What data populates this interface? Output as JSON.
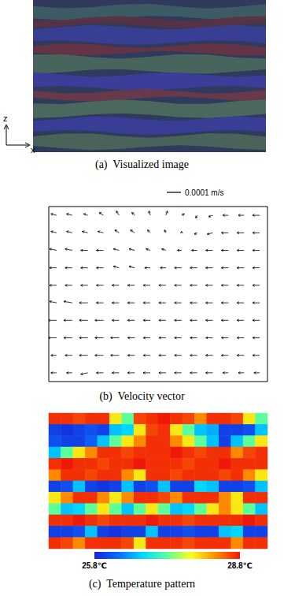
{
  "panel_a": {
    "caption": "(a)  Visualized image",
    "axis_labels": {
      "vertical": "z",
      "horizontal": "x"
    }
  },
  "chart_data": [
    {
      "type": "vector",
      "caption": "(b)  Velocity vector",
      "tick_labels": false,
      "scale_label": "0.0001 m/s",
      "scale_value": 0.0001,
      "u": [
        [
          -4e-05,
          -4e-05,
          -3e-05,
          -3e-05,
          -2e-05,
          -2e-05,
          -1e-05,
          1e-05,
          2e-05,
          -1e-05,
          -3e-05,
          -4e-05,
          -4e-05,
          -5e-05
        ],
        [
          -4e-05,
          -4e-05,
          -4e-05,
          -4e-05,
          -3e-05,
          -3e-05,
          -2e-05,
          -1e-05,
          0,
          -2e-05,
          -4e-05,
          -5e-05,
          -5e-05,
          -5e-05
        ],
        [
          -5e-05,
          -5e-05,
          -5e-05,
          -5e-05,
          -4e-05,
          -4e-05,
          -3e-05,
          -3e-05,
          -3e-05,
          -4e-05,
          -5e-05,
          -5e-05,
          -5e-05,
          -5e-05
        ],
        [
          -5e-05,
          -5e-05,
          -5e-05,
          -5e-05,
          -4e-05,
          -4e-05,
          -4e-05,
          -4e-05,
          -5e-05,
          -5e-05,
          -5e-05,
          -5e-05,
          -5e-05,
          -5e-05
        ],
        [
          -5e-05,
          -5e-05,
          -5e-05,
          -5e-05,
          -5e-05,
          -5e-05,
          -5e-05,
          -5e-05,
          -5e-05,
          -5e-05,
          -5e-05,
          -5e-05,
          -5e-05,
          -5e-05
        ],
        [
          -5e-05,
          -6e-05,
          -6e-05,
          -5e-05,
          -5e-05,
          -5e-05,
          -5e-05,
          -5e-05,
          -5e-05,
          -5e-05,
          -5e-05,
          -5e-05,
          -5e-05,
          -5e-05
        ],
        [
          -6e-05,
          -6e-05,
          -6e-05,
          -6e-05,
          -5e-05,
          -5e-05,
          -5e-05,
          -5e-05,
          -5e-05,
          -5e-05,
          -5e-05,
          -5e-05,
          -5e-05,
          -5e-05
        ],
        [
          -6e-05,
          -6e-05,
          -6e-05,
          -6e-05,
          -6e-05,
          -5e-05,
          -5e-05,
          -5e-05,
          -5e-05,
          -5e-05,
          -5e-05,
          -5e-05,
          -5e-05,
          -5e-05
        ],
        [
          -4e-05,
          -5e-05,
          -6e-05,
          -6e-05,
          -6e-05,
          -5e-05,
          -5e-05,
          -5e-05,
          -5e-05,
          -5e-05,
          -5e-05,
          -5e-05,
          -5e-05,
          -5e-05
        ],
        [
          -4e-05,
          -4e-05,
          -5e-05,
          -5e-05,
          -5e-05,
          -5e-05,
          -5e-05,
          -5e-05,
          -5e-05,
          -5e-05,
          -5e-05,
          -4e-05,
          -4e-05,
          -4e-05
        ]
      ],
      "v": [
        [
          1e-05,
          1e-05,
          1e-05,
          2e-05,
          3e-05,
          2e-05,
          3e-05,
          3e-05,
          1e-05,
          -2e-05,
          -1e-05,
          0,
          0,
          0
        ],
        [
          1e-05,
          1e-05,
          1e-05,
          1e-05,
          2e-05,
          2e-05,
          2e-05,
          2e-05,
          1e-05,
          -1e-05,
          -1e-05,
          0,
          0,
          0
        ],
        [
          1e-05,
          1e-05,
          0,
          0,
          1e-05,
          1e-05,
          1e-05,
          1e-05,
          0,
          0,
          0,
          0,
          0,
          0
        ],
        [
          0,
          0,
          0,
          0,
          1e-05,
          1e-05,
          0,
          0,
          0,
          0,
          0,
          0,
          0,
          0
        ],
        [
          0,
          0,
          0,
          0,
          0,
          0,
          0,
          0,
          0,
          0,
          0,
          0,
          0,
          0
        ],
        [
          1e-05,
          1e-05,
          0,
          0,
          0,
          0,
          0,
          0,
          0,
          0,
          0,
          0,
          0,
          0
        ],
        [
          0,
          0,
          0,
          0,
          0,
          0,
          0,
          0,
          0,
          0,
          0,
          0,
          0,
          0
        ],
        [
          0,
          0,
          0,
          0,
          0,
          0,
          0,
          0,
          0,
          0,
          0,
          0,
          0,
          0
        ],
        [
          0,
          0,
          0,
          0,
          0,
          0,
          0,
          0,
          0,
          0,
          0,
          0,
          0,
          0
        ],
        [
          0,
          0,
          -1e-05,
          0,
          0,
          0,
          0,
          0,
          0,
          0,
          0,
          0,
          0,
          0
        ]
      ]
    },
    {
      "type": "heatmap",
      "caption": "(c)  Temperature pattern",
      "tick_labels": false,
      "cells": [
        [
          28.7,
          28.7,
          28.6,
          28.7,
          28.7,
          27.9,
          27.3,
          28.6,
          28.7,
          28.8,
          28.7,
          28.6,
          28.3,
          28.7,
          28.7,
          28.6,
          27.9,
          27.3
        ],
        [
          26.0,
          25.9,
          26.0,
          26.1,
          26.0,
          26.7,
          26.8,
          27.9,
          28.6,
          28.7,
          27.9,
          27.3,
          26.7,
          26.6,
          26.0,
          26.0,
          26.1,
          26.7
        ],
        [
          26.1,
          26.0,
          26.0,
          26.2,
          26.7,
          27.3,
          27.9,
          28.3,
          28.7,
          28.7,
          28.3,
          27.9,
          27.3,
          26.7,
          26.0,
          26.7,
          27.3,
          27.9
        ],
        [
          26.7,
          27.3,
          27.9,
          28.3,
          28.7,
          28.7,
          28.6,
          28.7,
          28.7,
          28.7,
          28.8,
          28.7,
          28.6,
          28.7,
          28.7,
          28.3,
          28.6,
          28.7
        ],
        [
          28.7,
          28.8,
          28.7,
          28.7,
          28.6,
          28.7,
          28.7,
          28.8,
          28.7,
          28.7,
          28.7,
          28.6,
          28.7,
          28.7,
          28.8,
          28.7,
          28.7,
          28.7
        ],
        [
          28.3,
          28.7,
          28.7,
          28.6,
          28.7,
          28.7,
          28.3,
          27.9,
          28.7,
          28.7,
          28.6,
          28.7,
          28.7,
          28.7,
          28.6,
          28.7,
          28.3,
          27.9
        ],
        [
          26.0,
          26.1,
          26.7,
          26.0,
          25.9,
          26.0,
          26.7,
          26.0,
          26.1,
          26.7,
          26.0,
          26.0,
          26.8,
          26.7,
          26.0,
          26.0,
          26.1,
          26.7
        ],
        [
          27.9,
          28.3,
          28.7,
          28.7,
          28.3,
          27.9,
          28.3,
          28.7,
          28.7,
          28.6,
          28.3,
          28.7,
          28.7,
          28.7,
          28.3,
          27.9,
          28.7,
          28.7
        ],
        [
          27.3,
          26.7,
          26.8,
          27.3,
          27.9,
          27.3,
          26.7,
          27.3,
          27.9,
          27.3,
          26.7,
          26.8,
          27.3,
          27.9,
          28.3,
          27.9,
          27.3,
          26.7
        ],
        [
          28.7,
          28.7,
          28.8,
          28.7,
          28.6,
          28.7,
          28.7,
          28.7,
          28.8,
          28.7,
          28.7,
          28.6,
          28.7,
          28.7,
          28.7,
          28.7,
          28.8,
          28.7
        ],
        [
          26.0,
          26.0,
          26.1,
          26.7,
          26.0,
          25.9,
          26.0,
          26.0,
          26.7,
          26.0,
          26.0,
          26.1,
          26.0,
          26.0,
          26.7,
          26.8,
          26.0,
          26.0
        ],
        [
          28.7,
          28.6,
          28.3,
          28.7,
          28.7,
          28.7,
          28.6,
          27.9,
          28.7,
          28.7,
          28.7,
          28.6,
          28.7,
          28.7,
          28.7,
          28.3,
          28.7,
          28.7
        ]
      ],
      "colorbar": {
        "range": [
          25.8,
          28.8
        ],
        "ticks": [
          {
            "value": 25.8,
            "label": "25.8℃"
          },
          {
            "value": 28.8,
            "label": "28.8℃"
          }
        ]
      }
    }
  ]
}
